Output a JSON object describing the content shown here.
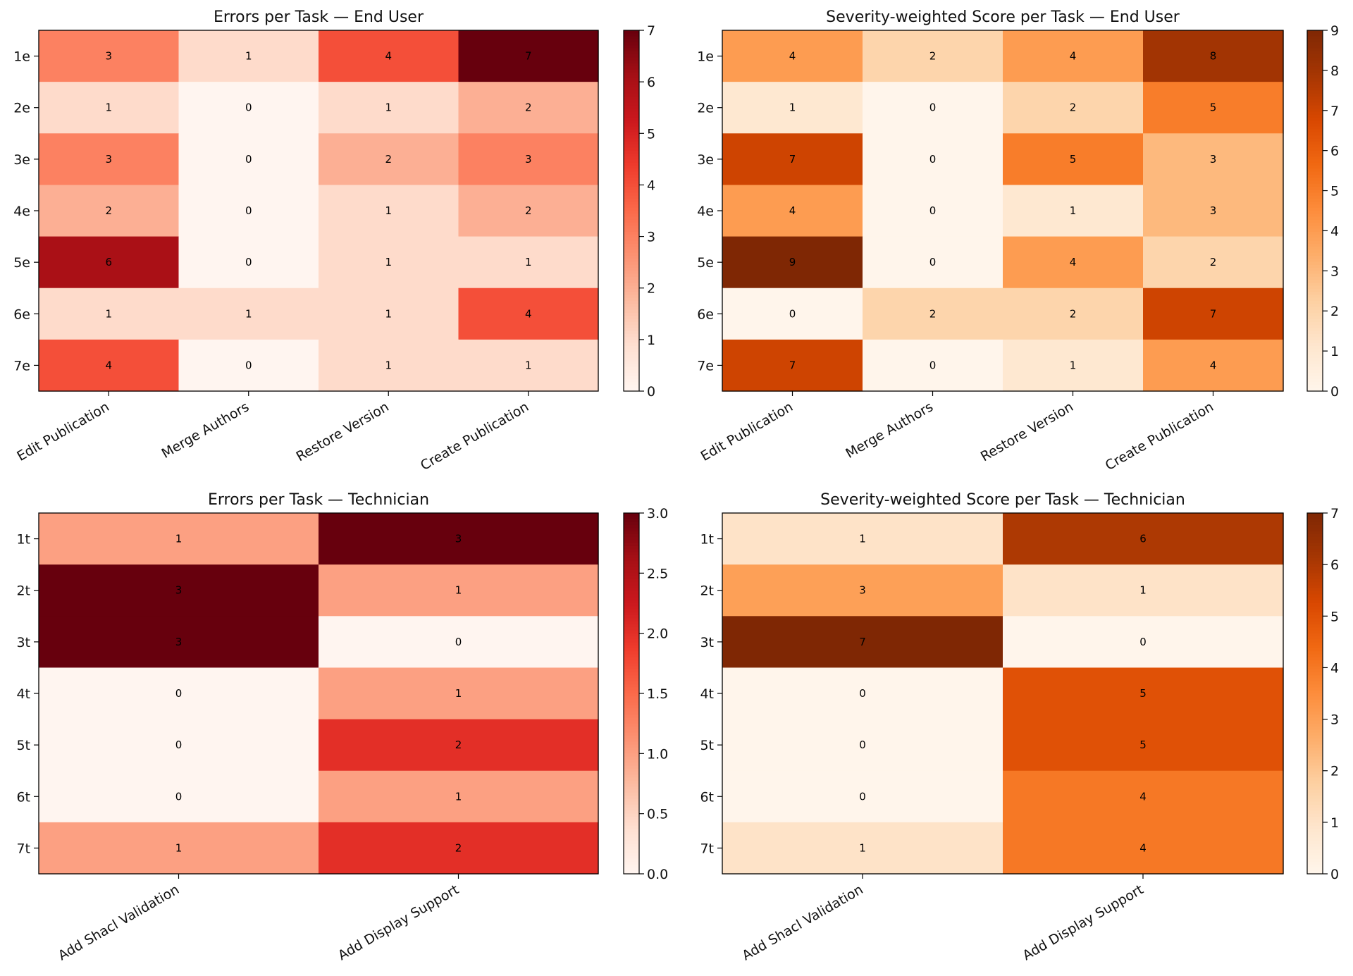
{
  "chart_data": [
    {
      "type": "heatmap",
      "title": "Errors per Task — End User",
      "colormap": "Reds",
      "rows": [
        "1e",
        "2e",
        "3e",
        "4e",
        "5e",
        "6e",
        "7e"
      ],
      "columns": [
        "Edit Publication",
        "Merge Authors",
        "Restore Version",
        "Create Publication"
      ],
      "values": [
        [
          3,
          1,
          4,
          7
        ],
        [
          1,
          0,
          1,
          2
        ],
        [
          3,
          0,
          2,
          3
        ],
        [
          2,
          0,
          1,
          2
        ],
        [
          6,
          0,
          1,
          1
        ],
        [
          1,
          1,
          1,
          4
        ],
        [
          4,
          0,
          1,
          1
        ]
      ],
      "vmin": 0,
      "vmax": 7,
      "colorbar_ticks": [
        "0",
        "1",
        "2",
        "3",
        "4",
        "5",
        "6",
        "7"
      ]
    },
    {
      "type": "heatmap",
      "title": "Severity-weighted Score per Task — End User",
      "colormap": "Oranges",
      "rows": [
        "1e",
        "2e",
        "3e",
        "4e",
        "5e",
        "6e",
        "7e"
      ],
      "columns": [
        "Edit Publication",
        "Merge Authors",
        "Restore Version",
        "Create Publication"
      ],
      "values": [
        [
          4,
          2,
          4,
          8
        ],
        [
          1,
          0,
          2,
          5
        ],
        [
          7,
          0,
          5,
          3
        ],
        [
          4,
          0,
          1,
          3
        ],
        [
          9,
          0,
          4,
          2
        ],
        [
          0,
          2,
          2,
          7
        ],
        [
          7,
          0,
          1,
          4
        ]
      ],
      "vmin": 0,
      "vmax": 9,
      "colorbar_ticks": [
        "0",
        "1",
        "2",
        "3",
        "4",
        "5",
        "6",
        "7",
        "8",
        "9"
      ]
    },
    {
      "type": "heatmap",
      "title": "Errors per Task — Technician",
      "colormap": "Reds",
      "rows": [
        "1t",
        "2t",
        "3t",
        "4t",
        "5t",
        "6t",
        "7t"
      ],
      "columns": [
        "Add Shacl Validation",
        "Add Display Support"
      ],
      "values": [
        [
          1,
          3
        ],
        [
          3,
          1
        ],
        [
          3,
          0
        ],
        [
          0,
          1
        ],
        [
          0,
          2
        ],
        [
          0,
          1
        ],
        [
          1,
          2
        ]
      ],
      "vmin": 0,
      "vmax": 3,
      "colorbar_ticks": [
        "0.0",
        "0.5",
        "1.0",
        "1.5",
        "2.0",
        "2.5",
        "3.0"
      ]
    },
    {
      "type": "heatmap",
      "title": "Severity-weighted Score per Task — Technician",
      "colormap": "Oranges",
      "rows": [
        "1t",
        "2t",
        "3t",
        "4t",
        "5t",
        "6t",
        "7t"
      ],
      "columns": [
        "Add Shacl Validation",
        "Add Display Support"
      ],
      "values": [
        [
          1,
          6
        ],
        [
          3,
          1
        ],
        [
          7,
          0
        ],
        [
          0,
          5
        ],
        [
          0,
          5
        ],
        [
          0,
          4
        ],
        [
          1,
          4
        ]
      ],
      "vmin": 0,
      "vmax": 7,
      "colorbar_ticks": [
        "0",
        "1",
        "2",
        "3",
        "4",
        "5",
        "6",
        "7"
      ]
    }
  ]
}
